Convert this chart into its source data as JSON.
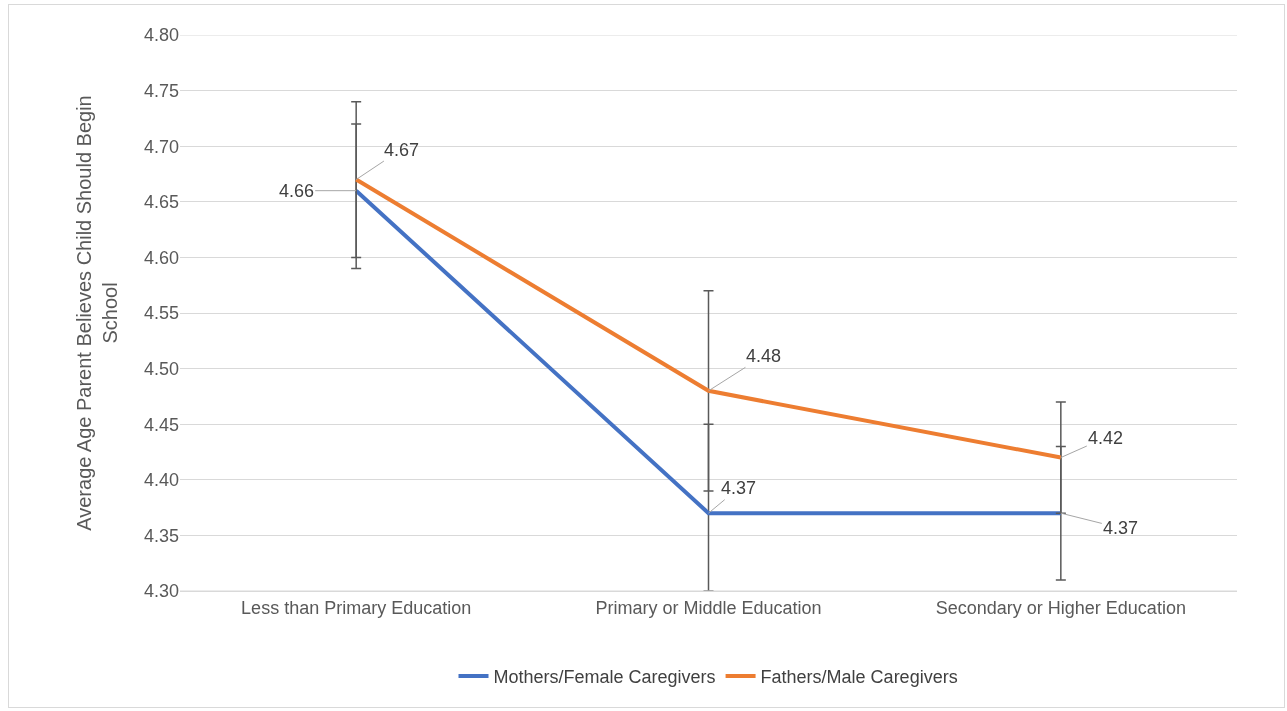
{
  "chart_data": {
    "type": "line",
    "ylabel": "Average Age Parent Believes Child Should Begin School",
    "categories": [
      "Less than Primary Education",
      "Primary or Middle Education",
      "Secondary or Higher Education"
    ],
    "series": [
      {
        "name": "Mothers/Female Caregivers",
        "color": "#4472c4",
        "values": [
          4.66,
          4.37,
          4.37
        ],
        "errors": [
          [
            4.6,
            4.72
          ],
          [
            4.3,
            4.45
          ],
          [
            4.31,
            4.43
          ]
        ]
      },
      {
        "name": "Fathers/Male Caregivers",
        "color": "#ed7d31",
        "values": [
          4.67,
          4.48,
          4.42
        ],
        "errors": [
          [
            4.59,
            4.74
          ],
          [
            4.39,
            4.57
          ],
          [
            4.37,
            4.47
          ]
        ]
      }
    ],
    "ylim": [
      4.3,
      4.8
    ],
    "yticks": [
      {
        "value": 4.3,
        "label": "4.30"
      },
      4.35,
      {
        "value": 4.4,
        "label": "4.40"
      },
      4.45,
      {
        "value": 4.5,
        "label": "4.50"
      },
      4.55,
      {
        "value": 4.6,
        "label": "4.60"
      },
      4.65,
      {
        "value": 4.7,
        "label": "4.70"
      },
      4.75,
      {
        "value": 4.8,
        "label": "4.80"
      }
    ],
    "grid": "y",
    "legend": "bottom",
    "marker": "none",
    "line_style": "solid",
    "data_labels": true
  }
}
